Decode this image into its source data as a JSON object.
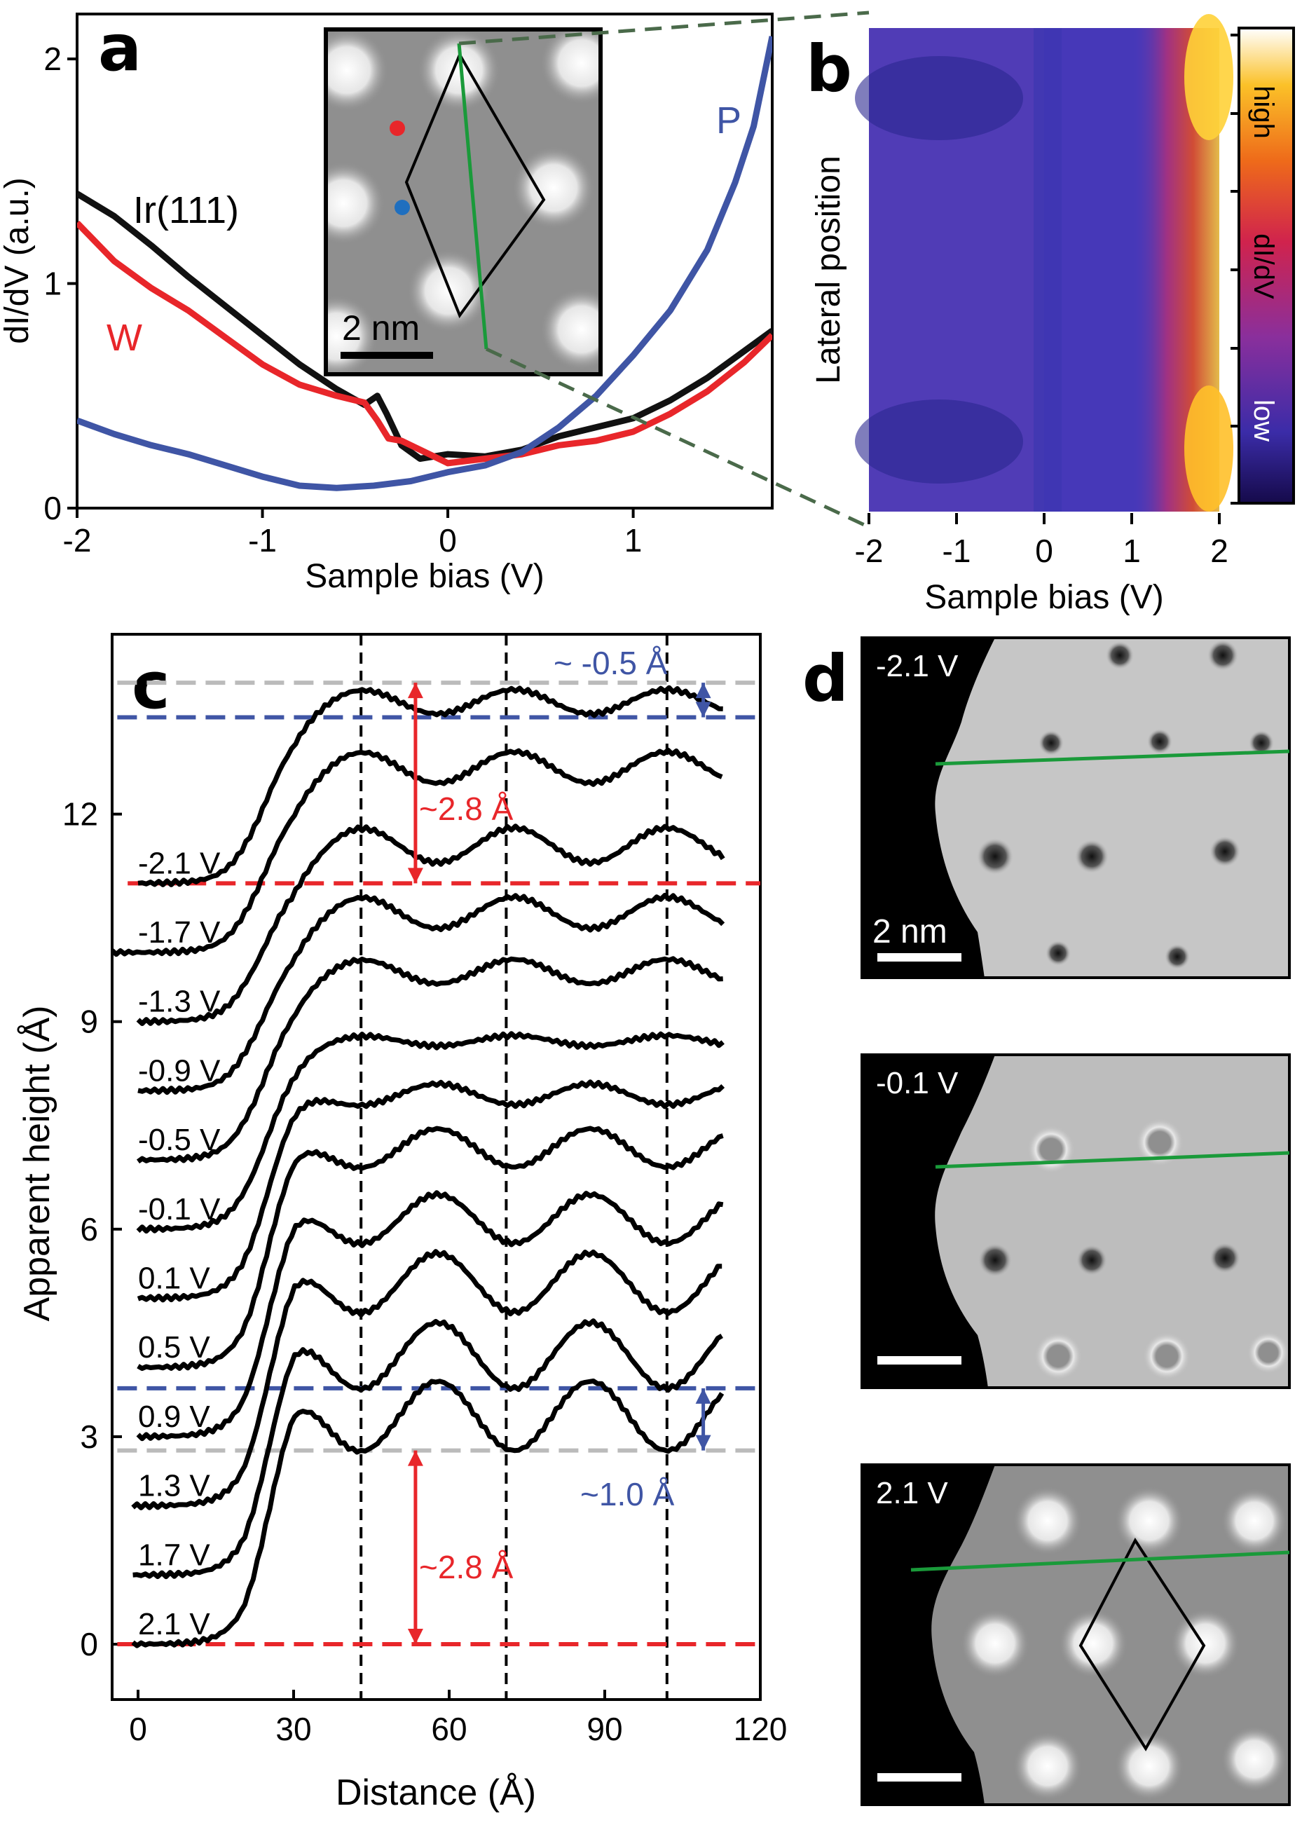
{
  "panels": {
    "a": {
      "letter": "a",
      "xlabel": "Sample bias (V)",
      "ylabel": "dI/dV (a.u.)",
      "xlim": [
        -2,
        1.75
      ],
      "ylim": [
        0,
        2.2
      ],
      "xticks": [
        "-2",
        "-1",
        "0",
        "1"
      ],
      "yticks": [
        "0",
        "1",
        "2"
      ],
      "series": [
        {
          "name": "Ir(111)",
          "color": "#111111",
          "points": [
            [
              -2.0,
              1.4
            ],
            [
              -1.8,
              1.3
            ],
            [
              -1.6,
              1.17
            ],
            [
              -1.4,
              1.03
            ],
            [
              -1.2,
              0.9
            ],
            [
              -1.0,
              0.77
            ],
            [
              -0.8,
              0.64
            ],
            [
              -0.6,
              0.53
            ],
            [
              -0.45,
              0.46
            ],
            [
              -0.38,
              0.5
            ],
            [
              -0.33,
              0.42
            ],
            [
              -0.25,
              0.28
            ],
            [
              -0.15,
              0.22
            ],
            [
              0.0,
              0.24
            ],
            [
              0.2,
              0.23
            ],
            [
              0.4,
              0.26
            ],
            [
              0.6,
              0.32
            ],
            [
              0.8,
              0.36
            ],
            [
              1.0,
              0.4
            ],
            [
              1.2,
              0.48
            ],
            [
              1.4,
              0.58
            ],
            [
              1.6,
              0.7
            ],
            [
              1.75,
              0.79
            ]
          ]
        },
        {
          "name": "W",
          "color": "#e8262a",
          "points": [
            [
              -2.0,
              1.27
            ],
            [
              -1.8,
              1.1
            ],
            [
              -1.6,
              0.98
            ],
            [
              -1.4,
              0.88
            ],
            [
              -1.2,
              0.76
            ],
            [
              -1.0,
              0.64
            ],
            [
              -0.8,
              0.55
            ],
            [
              -0.6,
              0.5
            ],
            [
              -0.45,
              0.47
            ],
            [
              -0.38,
              0.39
            ],
            [
              -0.32,
              0.31
            ],
            [
              -0.25,
              0.3
            ],
            [
              -0.15,
              0.26
            ],
            [
              0.0,
              0.2
            ],
            [
              0.2,
              0.22
            ],
            [
              0.4,
              0.24
            ],
            [
              0.6,
              0.28
            ],
            [
              0.8,
              0.3
            ],
            [
              1.0,
              0.34
            ],
            [
              1.2,
              0.42
            ],
            [
              1.4,
              0.52
            ],
            [
              1.6,
              0.65
            ],
            [
              1.75,
              0.77
            ]
          ]
        },
        {
          "name": "P",
          "color": "#3f55a5",
          "points": [
            [
              -2.0,
              0.39
            ],
            [
              -1.8,
              0.33
            ],
            [
              -1.6,
              0.28
            ],
            [
              -1.4,
              0.24
            ],
            [
              -1.2,
              0.19
            ],
            [
              -1.0,
              0.14
            ],
            [
              -0.8,
              0.1
            ],
            [
              -0.6,
              0.09
            ],
            [
              -0.4,
              0.1
            ],
            [
              -0.2,
              0.12
            ],
            [
              0.0,
              0.16
            ],
            [
              0.2,
              0.19
            ],
            [
              0.4,
              0.25
            ],
            [
              0.6,
              0.36
            ],
            [
              0.8,
              0.5
            ],
            [
              1.0,
              0.68
            ],
            [
              1.2,
              0.88
            ],
            [
              1.4,
              1.15
            ],
            [
              1.55,
              1.45
            ],
            [
              1.65,
              1.7
            ],
            [
              1.75,
              2.1
            ]
          ]
        }
      ],
      "labels": {
        "ir": "Ir(111)",
        "w": "W",
        "p": "P"
      },
      "inset": {
        "scalebar": "2 nm"
      }
    },
    "b": {
      "letter": "b",
      "xlabel": "Sample bias (V)",
      "ylabel": "Lateral position",
      "xlim": [
        -2,
        2
      ],
      "xticks": [
        "-2",
        "-1",
        "0",
        "1",
        "2"
      ],
      "colorbar": {
        "high": "high",
        "mid": "dI/dV",
        "low": "low"
      }
    },
    "c": {
      "letter": "c",
      "xlabel": "Distance (Å)",
      "ylabel": "Apparent height (Å)",
      "xlim": [
        -5,
        120
      ],
      "ylim": [
        -0.8,
        14.6
      ],
      "xticks": [
        "0",
        "30",
        "60",
        "90",
        "120"
      ],
      "yticks": [
        "0",
        "3",
        "6",
        "9",
        "12"
      ],
      "vlines": [
        43,
        71,
        102
      ],
      "curves": [
        {
          "label": "-2.1 V",
          "offset": 11.0,
          "start": 0,
          "amp": 2.8,
          "dip": 0.35
        },
        {
          "label": "-1.7 V",
          "offset": 10.0,
          "start": -5,
          "amp": 2.9,
          "dip": 0.45
        },
        {
          "label": "-1.3 V",
          "offset": 9.0,
          "start": 0,
          "amp": 2.8,
          "dip": 0.5
        },
        {
          "label": "-0.9 V",
          "offset": 8.0,
          "start": 0,
          "amp": 2.8,
          "dip": 0.45
        },
        {
          "label": "-0.5 V",
          "offset": 7.0,
          "start": 0,
          "amp": 2.9,
          "dip": 0.35
        },
        {
          "label": "-0.1 V",
          "offset": 6.0,
          "start": 0,
          "amp": 2.8,
          "dip": 0.15
        },
        {
          "label": "0.1 V",
          "offset": 5.0,
          "start": 0,
          "amp": 2.8,
          "dip": -0.3
        },
        {
          "label": "0.5 V",
          "offset": 4.0,
          "start": 0,
          "amp": 2.9,
          "dip": -0.55
        },
        {
          "label": "0.9 V",
          "offset": 3.0,
          "start": 0,
          "amp": 2.8,
          "dip": -0.7
        },
        {
          "label": "1.3 V",
          "offset": 2.0,
          "start": -1,
          "amp": 2.8,
          "dip": -0.85
        },
        {
          "label": "1.7 V",
          "offset": 1.0,
          "start": -1,
          "amp": 2.7,
          "dip": -0.95
        },
        {
          "label": "2.1 V",
          "offset": 0.0,
          "start": -1,
          "amp": 2.8,
          "dip": -1.0
        }
      ],
      "annotations": {
        "top_blue": "~ -0.5 Å",
        "top_red": "~2.8 Å",
        "bottom_blue": "~1.0 Å",
        "bottom_red": "~2.8 Å"
      },
      "hlines": {
        "grey_top": 13.9,
        "blue_top": 13.4,
        "red_top": 11.0,
        "blue_bottom": 3.7,
        "grey_bottom": 2.8,
        "red_bottom": 0.0
      }
    },
    "d": {
      "letter": "d",
      "images": [
        {
          "label": "-2.1 V",
          "scalebar": "2 nm"
        },
        {
          "label": "-0.1 V"
        },
        {
          "label": "2.1 V"
        }
      ]
    }
  },
  "colors": {
    "red": "#e8262a",
    "blue": "#3f55a5",
    "grey": "#bbbbbb",
    "green": "#1a9a3a"
  }
}
